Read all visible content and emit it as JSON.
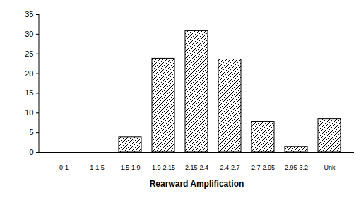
{
  "chart_data": {
    "type": "bar",
    "categories": [
      "0-1",
      "1-1.5",
      "1.5-1.9",
      "1.9-2.15",
      "2.15-2.4",
      "2.4-2.7",
      "2.7-2.95",
      "2.95-3.2",
      "Unk"
    ],
    "values": [
      0,
      0,
      3.8,
      23.8,
      30.8,
      23.6,
      7.8,
      1.4,
      8.5
    ],
    "color": "#000000",
    "xlabel": "Rearward Amplification",
    "ylim": [
      0,
      35
    ],
    "yticks": [
      0,
      5,
      10,
      15,
      20,
      25,
      30,
      35
    ],
    "grid": false
  }
}
